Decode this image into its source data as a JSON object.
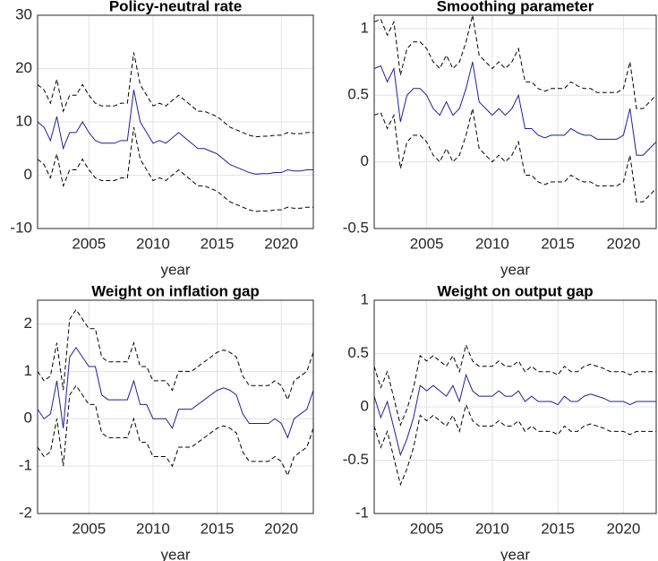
{
  "chart_data": [
    {
      "type": "line",
      "title": "Policy-neutral rate",
      "xlabel": "year",
      "x": [
        2001,
        2001.5,
        2002,
        2002.5,
        2003,
        2003.5,
        2004,
        2004.5,
        2005,
        2005.5,
        2006,
        2006.5,
        2007,
        2007.5,
        2008,
        2008.5,
        2009,
        2009.5,
        2010,
        2010.5,
        2011,
        2011.5,
        2012,
        2012.5,
        2013,
        2013.5,
        2014,
        2014.5,
        2015,
        2015.5,
        2016,
        2016.5,
        2017,
        2017.5,
        2018,
        2018.5,
        2019,
        2019.5,
        2020,
        2020.5,
        2021,
        2021.5,
        2022,
        2022.5
      ],
      "xlim": [
        2001,
        2022.5
      ],
      "xticks": [
        2005,
        2010,
        2015,
        2020
      ],
      "ylim": [
        -10,
        30
      ],
      "yticks": [
        -10,
        0,
        10,
        20,
        30
      ],
      "grid": true,
      "series": [
        {
          "color": "#1f1f9a",
          "style": "solid",
          "values": [
            10,
            9,
            6.5,
            11,
            5,
            8,
            8,
            10,
            8,
            6.5,
            6,
            6,
            6,
            6.5,
            6.5,
            16,
            10,
            8,
            6,
            6.5,
            6,
            7,
            8,
            7,
            6,
            5,
            5,
            4.5,
            4,
            3,
            2,
            1.5,
            1,
            0.5,
            0.2,
            0.3,
            0.3,
            0.5,
            0.5,
            1,
            0.8,
            0.8,
            1,
            1
          ]
        },
        {
          "color": "#000000",
          "style": "dashed",
          "values": [
            17,
            16,
            13.5,
            18,
            12,
            15,
            15,
            17,
            15,
            13.5,
            13,
            13,
            13,
            13.5,
            13.5,
            23,
            17,
            15,
            13,
            13.5,
            13,
            14,
            15,
            14,
            13,
            12,
            12,
            11.5,
            11,
            10,
            9,
            8.5,
            8,
            7.5,
            7.2,
            7.3,
            7.3,
            7.5,
            7.5,
            8,
            7.8,
            7.8,
            8,
            8
          ]
        },
        {
          "color": "#000000",
          "style": "dashed",
          "values": [
            3,
            2,
            -0.5,
            4,
            -2,
            1,
            1,
            3,
            1,
            -0.5,
            -1,
            -1,
            -1,
            -0.5,
            -0.5,
            9,
            3,
            1,
            -1,
            -0.5,
            -1,
            0,
            1,
            0,
            -1,
            -2,
            -2,
            -2.5,
            -3,
            -4,
            -5,
            -5.5,
            -6,
            -6.5,
            -6.8,
            -6.7,
            -6.7,
            -6.5,
            -6.5,
            -6,
            -6.2,
            -6.2,
            -6,
            -6
          ]
        }
      ]
    },
    {
      "type": "line",
      "title": "Smoothing parameter",
      "xlabel": "year",
      "x": [
        2001,
        2001.5,
        2002,
        2002.5,
        2003,
        2003.5,
        2004,
        2004.5,
        2005,
        2005.5,
        2006,
        2006.5,
        2007,
        2007.5,
        2008,
        2008.5,
        2009,
        2009.5,
        2010,
        2010.5,
        2011,
        2011.5,
        2012,
        2012.5,
        2013,
        2013.5,
        2014,
        2014.5,
        2015,
        2015.5,
        2016,
        2016.5,
        2017,
        2017.5,
        2018,
        2018.5,
        2019,
        2019.5,
        2020,
        2020.5,
        2021,
        2021.5,
        2022,
        2022.5
      ],
      "xlim": [
        2001,
        2022.5
      ],
      "xticks": [
        2005,
        2010,
        2015,
        2020
      ],
      "ylim": [
        -0.5,
        1.1
      ],
      "yticks": [
        -0.5,
        0,
        0.5,
        1
      ],
      "grid": true,
      "series": [
        {
          "color": "#1f1f9a",
          "style": "solid",
          "values": [
            0.7,
            0.72,
            0.6,
            0.7,
            0.3,
            0.5,
            0.55,
            0.55,
            0.5,
            0.4,
            0.35,
            0.45,
            0.35,
            0.4,
            0.55,
            0.75,
            0.45,
            0.4,
            0.35,
            0.4,
            0.35,
            0.4,
            0.5,
            0.25,
            0.25,
            0.2,
            0.18,
            0.2,
            0.2,
            0.2,
            0.25,
            0.22,
            0.2,
            0.2,
            0.17,
            0.17,
            0.17,
            0.17,
            0.2,
            0.4,
            0.05,
            0.05,
            0.1,
            0.15
          ]
        },
        {
          "color": "#000000",
          "style": "dashed",
          "values": [
            1.05,
            1.07,
            0.95,
            1.05,
            0.65,
            0.85,
            0.9,
            0.9,
            0.85,
            0.75,
            0.7,
            0.8,
            0.7,
            0.75,
            0.9,
            1.1,
            0.8,
            0.75,
            0.7,
            0.75,
            0.7,
            0.75,
            0.85,
            0.6,
            0.6,
            0.55,
            0.53,
            0.55,
            0.55,
            0.55,
            0.6,
            0.57,
            0.55,
            0.55,
            0.52,
            0.52,
            0.52,
            0.52,
            0.55,
            0.75,
            0.4,
            0.4,
            0.45,
            0.5
          ]
        },
        {
          "color": "#000000",
          "style": "dashed",
          "values": [
            0.35,
            0.37,
            0.25,
            0.35,
            -0.05,
            0.15,
            0.2,
            0.2,
            0.15,
            0.05,
            0,
            0.1,
            0,
            0.05,
            0.2,
            0.4,
            0.1,
            0.05,
            0,
            0.05,
            0,
            0.05,
            0.15,
            -0.1,
            -0.1,
            -0.15,
            -0.17,
            -0.15,
            -0.15,
            -0.15,
            -0.1,
            -0.13,
            -0.15,
            -0.15,
            -0.18,
            -0.18,
            -0.18,
            -0.18,
            -0.15,
            0.05,
            -0.3,
            -0.3,
            -0.25,
            -0.2
          ]
        }
      ]
    },
    {
      "type": "line",
      "title": "Weight on inflation gap",
      "xlabel": "year",
      "x": [
        2001,
        2001.5,
        2002,
        2002.5,
        2003,
        2003.5,
        2004,
        2004.5,
        2005,
        2005.5,
        2006,
        2006.5,
        2007,
        2007.5,
        2008,
        2008.5,
        2009,
        2009.5,
        2010,
        2010.5,
        2011,
        2011.5,
        2012,
        2012.5,
        2013,
        2013.5,
        2014,
        2014.5,
        2015,
        2015.5,
        2016,
        2016.5,
        2017,
        2017.5,
        2018,
        2018.5,
        2019,
        2019.5,
        2020,
        2020.5,
        2021,
        2021.5,
        2022,
        2022.5
      ],
      "xlim": [
        2001,
        2022.5
      ],
      "xticks": [
        2005,
        2010,
        2015,
        2020
      ],
      "ylim": [
        -2,
        2.5
      ],
      "yticks": [
        -2,
        -1,
        0,
        1,
        2
      ],
      "grid": true,
      "series": [
        {
          "color": "#1f1f9a",
          "style": "solid",
          "values": [
            0.2,
            0,
            0.1,
            0.8,
            -0.2,
            1.3,
            1.5,
            1.3,
            1.1,
            1.1,
            0.5,
            0.4,
            0.4,
            0.4,
            0.4,
            0.8,
            0.3,
            0.3,
            0,
            0,
            0,
            -0.2,
            0.2,
            0.2,
            0.2,
            0.3,
            0.4,
            0.5,
            0.6,
            0.65,
            0.6,
            0.5,
            0.1,
            -0.1,
            -0.1,
            -0.1,
            -0.1,
            0,
            -0.1,
            -0.4,
            0,
            0.1,
            0.2,
            0.6
          ]
        },
        {
          "color": "#000000",
          "style": "dashed",
          "values": [
            1,
            0.8,
            0.9,
            1.6,
            0.6,
            2.1,
            2.3,
            2.1,
            1.9,
            1.9,
            1.3,
            1.2,
            1.2,
            1.2,
            1.2,
            1.6,
            1.1,
            1.1,
            0.8,
            0.8,
            0.8,
            0.6,
            1,
            1,
            1,
            1.1,
            1.2,
            1.3,
            1.4,
            1.45,
            1.4,
            1.3,
            0.9,
            0.7,
            0.7,
            0.7,
            0.7,
            0.8,
            0.7,
            0.4,
            0.8,
            0.9,
            1,
            1.4
          ]
        },
        {
          "color": "#000000",
          "style": "dashed",
          "values": [
            -0.6,
            -0.8,
            -0.7,
            0,
            -1,
            0.5,
            0.7,
            0.5,
            0.3,
            0.3,
            -0.3,
            -0.4,
            -0.4,
            -0.4,
            -0.4,
            0,
            -0.5,
            -0.5,
            -0.8,
            -0.8,
            -0.8,
            -1,
            -0.6,
            -0.6,
            -0.6,
            -0.5,
            -0.4,
            -0.3,
            -0.2,
            -0.15,
            -0.2,
            -0.3,
            -0.7,
            -0.9,
            -0.9,
            -0.9,
            -0.9,
            -0.8,
            -0.9,
            -1.2,
            -0.8,
            -0.7,
            -0.6,
            -0.2
          ]
        }
      ]
    },
    {
      "type": "line",
      "title": "Weight on output gap",
      "xlabel": "year",
      "x": [
        2001,
        2001.5,
        2002,
        2002.5,
        2003,
        2003.5,
        2004,
        2004.5,
        2005,
        2005.5,
        2006,
        2006.5,
        2007,
        2007.5,
        2008,
        2008.5,
        2009,
        2009.5,
        2010,
        2010.5,
        2011,
        2011.5,
        2012,
        2012.5,
        2013,
        2013.5,
        2014,
        2014.5,
        2015,
        2015.5,
        2016,
        2016.5,
        2017,
        2017.5,
        2018,
        2018.5,
        2019,
        2019.5,
        2020,
        2020.5,
        2021,
        2021.5,
        2022,
        2022.5
      ],
      "xlim": [
        2001,
        2022.5
      ],
      "xticks": [
        2005,
        2010,
        2015,
        2020
      ],
      "ylim": [
        -1,
        1
      ],
      "yticks": [
        -1,
        -0.5,
        0,
        0.5,
        1
      ],
      "grid": true,
      "series": [
        {
          "color": "#1f1f9a",
          "style": "solid",
          "values": [
            0.1,
            -0.1,
            0.05,
            -0.2,
            -0.45,
            -0.3,
            -0.1,
            0.2,
            0.15,
            0.2,
            0.15,
            0.1,
            0.2,
            0.05,
            0.3,
            0.15,
            0.1,
            0.1,
            0.1,
            0.15,
            0.1,
            0.1,
            0.15,
            0.05,
            0.1,
            0.05,
            0.05,
            0.05,
            0.02,
            0.1,
            0.05,
            0.05,
            0.1,
            0.12,
            0.1,
            0.08,
            0.05,
            0.05,
            0.05,
            0.02,
            0.05,
            0.05,
            0.05,
            0.05
          ]
        },
        {
          "color": "#000000",
          "style": "dashed",
          "values": [
            0.38,
            0.18,
            0.33,
            0.08,
            -0.17,
            -0.02,
            0.18,
            0.48,
            0.43,
            0.48,
            0.43,
            0.38,
            0.48,
            0.33,
            0.58,
            0.43,
            0.38,
            0.38,
            0.38,
            0.43,
            0.38,
            0.38,
            0.43,
            0.33,
            0.38,
            0.33,
            0.33,
            0.33,
            0.3,
            0.38,
            0.33,
            0.33,
            0.38,
            0.4,
            0.38,
            0.36,
            0.33,
            0.33,
            0.33,
            0.3,
            0.33,
            0.33,
            0.33,
            0.33
          ]
        },
        {
          "color": "#000000",
          "style": "dashed",
          "values": [
            -0.18,
            -0.38,
            -0.23,
            -0.48,
            -0.73,
            -0.58,
            -0.38,
            -0.08,
            -0.13,
            -0.08,
            -0.13,
            -0.18,
            -0.08,
            -0.23,
            0.02,
            -0.13,
            -0.18,
            -0.18,
            -0.18,
            -0.13,
            -0.18,
            -0.18,
            -0.13,
            -0.23,
            -0.18,
            -0.23,
            -0.23,
            -0.23,
            -0.26,
            -0.18,
            -0.23,
            -0.23,
            -0.18,
            -0.16,
            -0.18,
            -0.2,
            -0.23,
            -0.23,
            -0.23,
            -0.26,
            -0.23,
            -0.23,
            -0.23,
            -0.23
          ]
        }
      ]
    }
  ]
}
